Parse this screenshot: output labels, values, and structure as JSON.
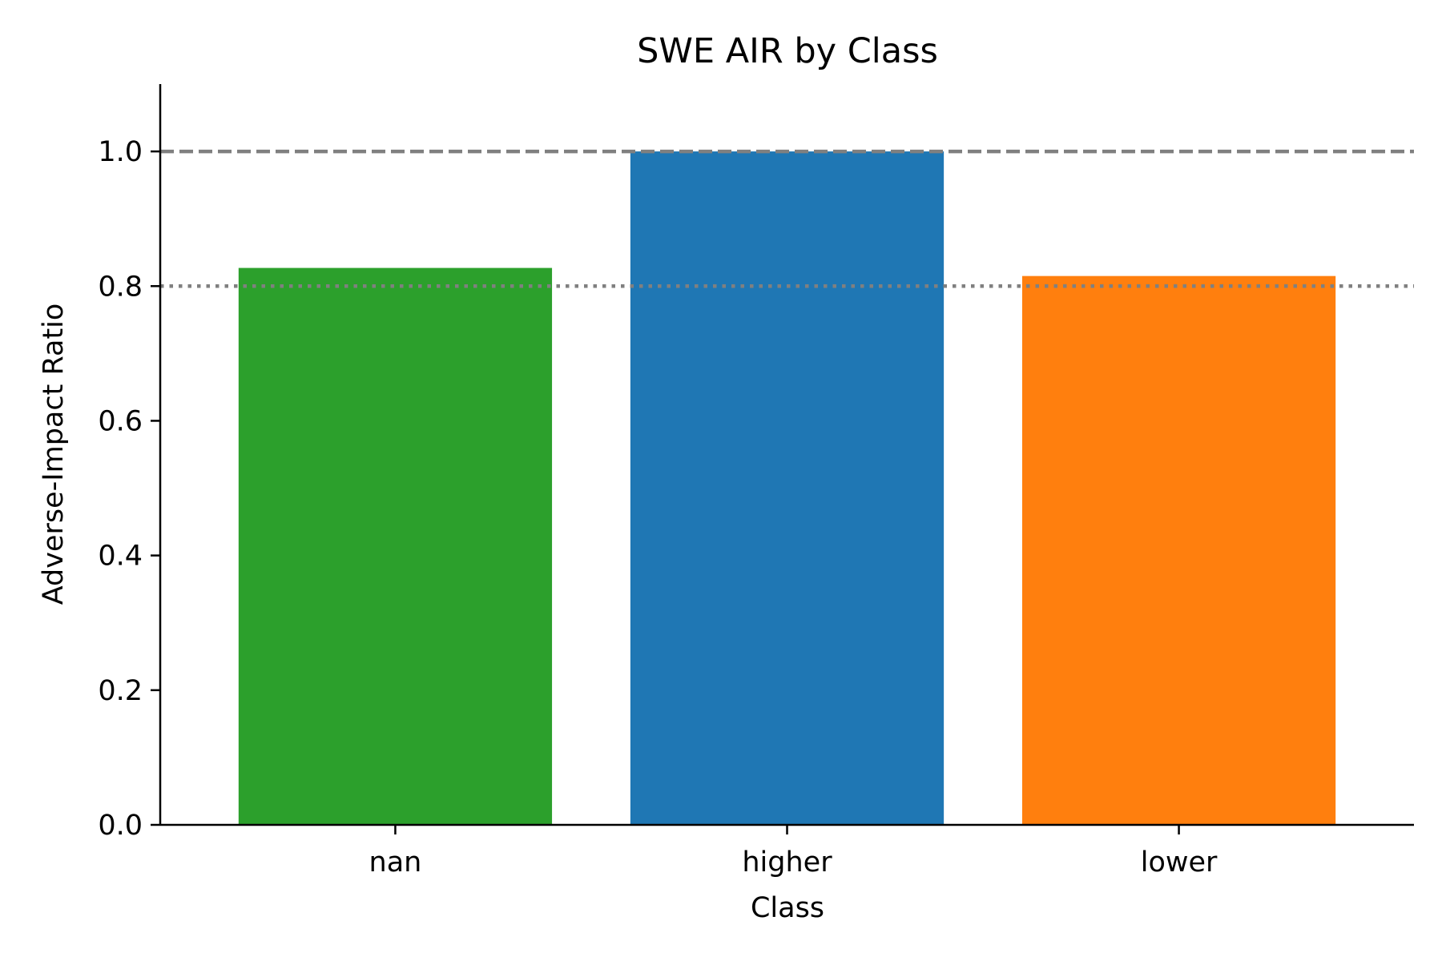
{
  "chart_data": {
    "type": "bar",
    "title": "SWE AIR by Class",
    "xlabel": "Class",
    "ylabel": "Adverse-Impact Ratio",
    "categories": [
      "nan",
      "higher",
      "lower"
    ],
    "values": [
      0.827,
      1.0,
      0.815
    ],
    "colors": [
      "#2ca02c",
      "#1f77b4",
      "#ff7f0e"
    ],
    "ylim": [
      0,
      1.1
    ],
    "yticks": [
      0.0,
      0.2,
      0.4,
      0.6,
      0.8,
      1.0
    ],
    "ytick_labels": [
      "0.0",
      "0.2",
      "0.4",
      "0.6",
      "0.8",
      "1.0"
    ],
    "reference_lines": [
      {
        "value": 1.0,
        "style": "dashed",
        "color": "#808080"
      },
      {
        "value": 0.8,
        "style": "dotted",
        "color": "#808080"
      }
    ],
    "grid": false,
    "legend": "none"
  }
}
